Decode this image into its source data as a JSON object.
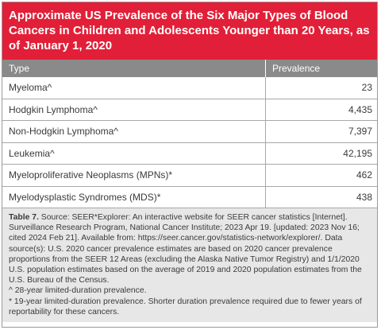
{
  "title": "Approximate US Prevalence of the Six Major Types of Blood Cancers in Children and Adolescents Younger than 20 Years, as of January 1, 2020",
  "table": {
    "headers": [
      "Type",
      "Prevalence"
    ],
    "rows": [
      {
        "type": "Myeloma^",
        "prevalence": "23"
      },
      {
        "type": "Hodgkin Lymphoma^",
        "prevalence": "4,435"
      },
      {
        "type": "Non-Hodgkin Lymphoma^",
        "prevalence": "7,397"
      },
      {
        "type": "Leukemia^",
        "prevalence": "42,195"
      },
      {
        "type": "Myeloproliferative Neoplasms (MPNs)*",
        "prevalence": "462"
      },
      {
        "type": "Myelodysplastic Syndromes (MDS)*",
        "prevalence": "438"
      }
    ]
  },
  "notes": {
    "label": "Table 7.",
    "source": " Source: SEER*Explorer: An interactive website for SEER cancer statistics [Internet]. Surveillance Research Program, National Cancer Institute; 2023 Apr 19. [updated: 2023 Nov 16; cited 2024 Feb 21]. Available from: https://seer.cancer.gov/statistics-network/explorer/. Data source(s): U.S. 2020 cancer prevalence estimates are based on 2020 cancer prevalence proportions from the SEER 12 Areas (excluding the Alaska Native Tumor Registry) and 1/1/2020 U.S. population estimates based on the average of 2019 and 2020 population estimates from the U.S. Bureau of the Census.",
    "caret": "^  28-year limited-duration prevalence.",
    "asterisk": "*  19-year limited-duration prevalence.  Shorter duration prevalence required due to fewer years of reportability for these cancers."
  }
}
